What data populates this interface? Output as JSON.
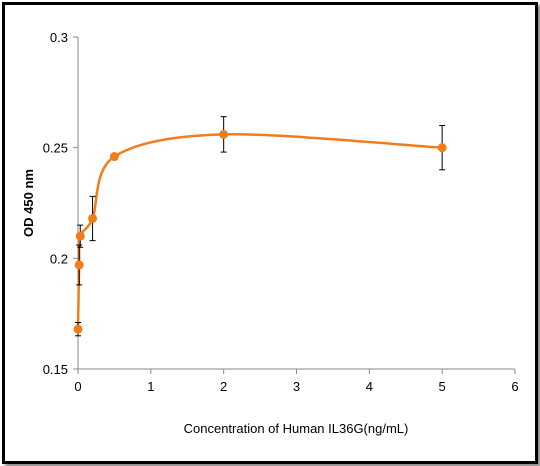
{
  "chart_data": {
    "type": "scatter",
    "title": "",
    "xlabel": "Concentration of Human IL36G(ng/mL)",
    "ylabel": "OD 450 nm",
    "xlim": [
      0,
      6
    ],
    "ylim": [
      0.15,
      0.3
    ],
    "xticks": [
      0,
      1,
      2,
      3,
      4,
      5,
      6
    ],
    "yticks": [
      0.15,
      0.2,
      0.25,
      0.3
    ],
    "xtick_labels": [
      "0",
      "1",
      "2",
      "3",
      "4",
      "5",
      "6"
    ],
    "ytick_labels": [
      "0.15",
      "0.2",
      "0.25",
      "0.3"
    ],
    "grid": false,
    "legend": "none",
    "series": [
      {
        "color": "#f07d1a",
        "points": [
          {
            "x": 0,
            "y": 0.168,
            "err": 0.003
          },
          {
            "x": 0.016,
            "y": 0.197,
            "err": 0.009
          },
          {
            "x": 0.031,
            "y": 0.21,
            "err": 0.005
          },
          {
            "x": 0.2,
            "y": 0.218,
            "err": 0.01
          },
          {
            "x": 0.5,
            "y": 0.246,
            "err": 0.001
          },
          {
            "x": 2,
            "y": 0.256,
            "err": 0.008
          },
          {
            "x": 5,
            "y": 0.25,
            "err": 0.01
          }
        ]
      }
    ]
  }
}
